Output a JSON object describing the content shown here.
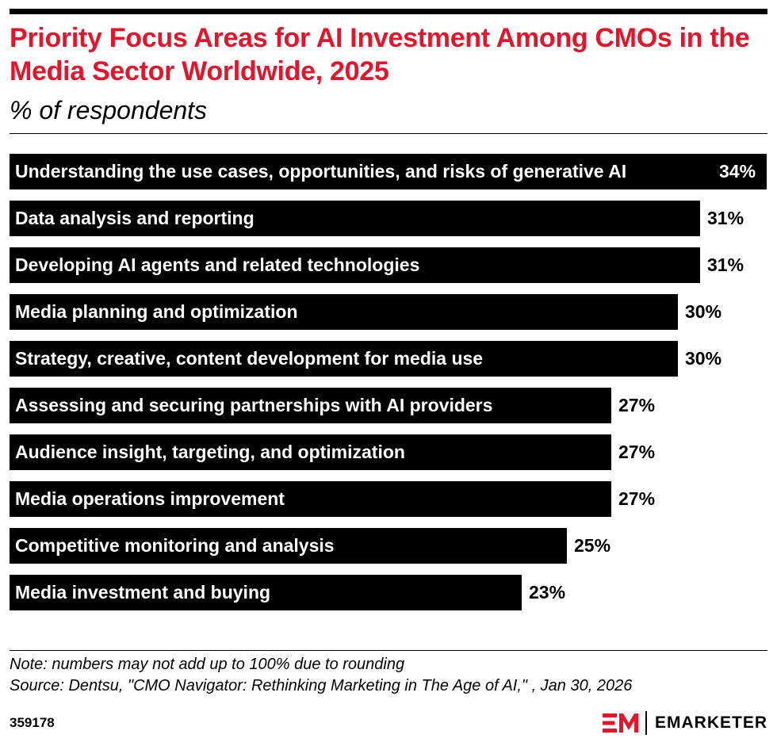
{
  "title": "Priority Focus Areas for AI Investment Among CMOs in the Media Sector Worldwide, 2025",
  "subtitle": "% of respondents",
  "note": "Note: numbers may not add up to 100% due to rounding",
  "source": "Source: Dentsu, \"CMO Navigator: Rethinking Marketing in The Age of AI,\" , Jan 30, 2026",
  "chart_id": "359178",
  "brand": {
    "wordmark": "EMARKETER",
    "accent_color": "#e4152b",
    "logo_icon": "em-logo-icon"
  },
  "chart_data": {
    "type": "bar",
    "orientation": "horizontal",
    "title": "Priority Focus Areas for AI Investment Among CMOs in the Media Sector Worldwide, 2025",
    "subtitle": "% of respondents",
    "bar_color": "#000000",
    "categories": [
      "Understanding the use cases, opportunities, and risks of generative AI",
      "Data analysis and reporting",
      "Developing AI agents and related technologies",
      "Media planning and optimization",
      "Strategy, creative, content development for media use",
      "Assessing and securing partnerships with AI providers",
      "Audience insight, targeting, and optimization",
      "Media operations improvement",
      "Competitive monitoring and analysis",
      "Media investment and buying"
    ],
    "values": [
      34,
      31,
      31,
      30,
      30,
      27,
      27,
      27,
      25,
      23
    ],
    "value_labels": [
      "34%",
      "31%",
      "31%",
      "30%",
      "30%",
      "27%",
      "27%",
      "27%",
      "25%",
      "23%"
    ],
    "grid": false,
    "legend": "none"
  }
}
